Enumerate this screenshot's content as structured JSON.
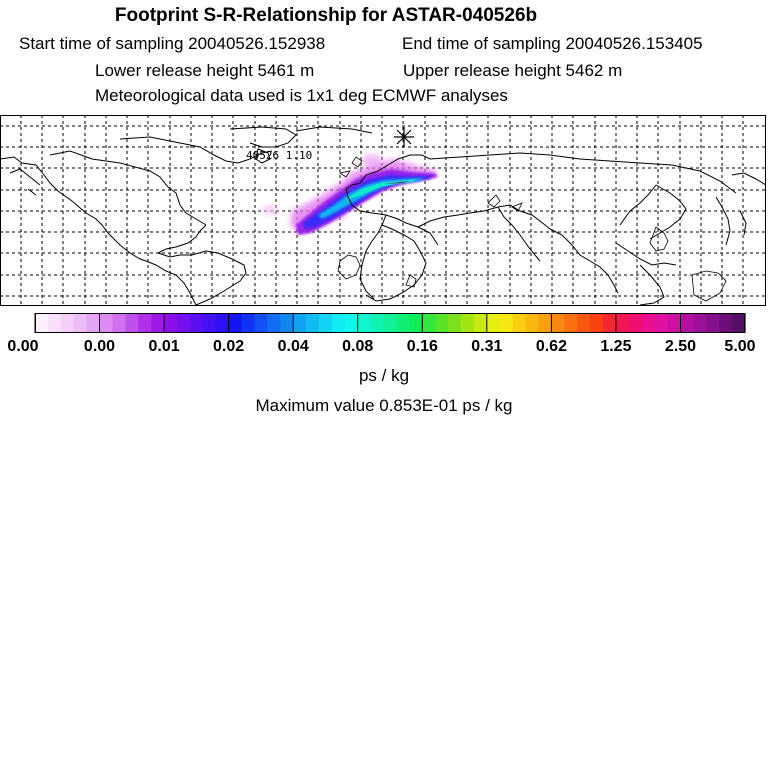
{
  "header": {
    "title": "Footprint S-R-Relationship for ASTAR-040526b",
    "start_time": "Start time of sampling 20040526.152938",
    "end_time": "End time of sampling 20040526.153405",
    "lower_height": "Lower release height 5461 m",
    "upper_height": "Upper release height 5462 m",
    "met_data": "Meteorological data used is 1x1 deg ECMWF analyses"
  },
  "map": {
    "annotation_text": "40526 1.10",
    "projection": "lat-lon",
    "graticule": "dashed"
  },
  "colorbar": {
    "tick_labels": [
      "0.00",
      "0.00",
      "0.01",
      "0.02",
      "0.04",
      "0.08",
      "0.16",
      "0.31",
      "0.62",
      "1.25",
      "2.50",
      "5.00"
    ],
    "colors": [
      "#fcf0fc",
      "#f8e0f8",
      "#f2cef8",
      "#ecbcf6",
      "#e4a6f4",
      "#dc8ef0",
      "#d070ee",
      "#c050ec",
      "#b030ea",
      "#a018e8",
      "#8a10ea",
      "#7410ee",
      "#5c10f2",
      "#4410f4",
      "#2c10f6",
      "#1414f8",
      "#1034f6",
      "#1050f4",
      "#106cf2",
      "#1088f2",
      "#10a2f2",
      "#10bcf2",
      "#10d4f2",
      "#10ecf2",
      "#10f6ea",
      "#10f4d0",
      "#10f2b4",
      "#10f096",
      "#10ee78",
      "#10ec5a",
      "#34e640",
      "#58e228",
      "#7ee01c",
      "#a4e410",
      "#c8ea10",
      "#e6ee10",
      "#f6e810",
      "#f8d010",
      "#f8b810",
      "#f8a010",
      "#f88810",
      "#f87010",
      "#f85810",
      "#f84010",
      "#f42830",
      "#f01850",
      "#ee1070",
      "#ea1090",
      "#e010a0",
      "#cc10a4",
      "#b410a0",
      "#9c1098",
      "#84108c",
      "#6c1078",
      "#541064"
    ],
    "units": "ps / kg",
    "max_value": "Maximum value  0.853E-01 ps / kg"
  }
}
